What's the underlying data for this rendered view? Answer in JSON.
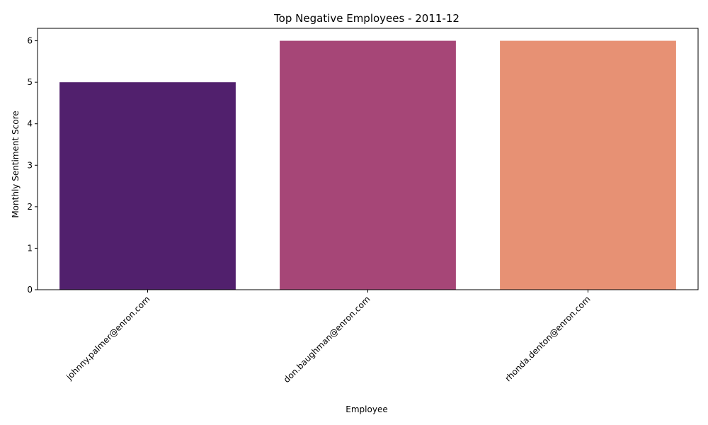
{
  "chart_data": {
    "type": "bar",
    "title": "Top Negative Employees - 2011-12",
    "xlabel": "Employee",
    "ylabel": "Monthly Sentiment Score",
    "categories": [
      "johnny.palmer@enron.com",
      "don.baughman@enron.com",
      "rhonda.denton@enron.com"
    ],
    "values": [
      5,
      6,
      6
    ],
    "bar_colors": [
      "#51206d",
      "#a64677",
      "#e79174"
    ],
    "ylim": [
      0,
      6.3
    ],
    "yticks": [
      "0",
      "1",
      "2",
      "3",
      "4",
      "5",
      "6"
    ],
    "grid": false,
    "legend": "none"
  }
}
